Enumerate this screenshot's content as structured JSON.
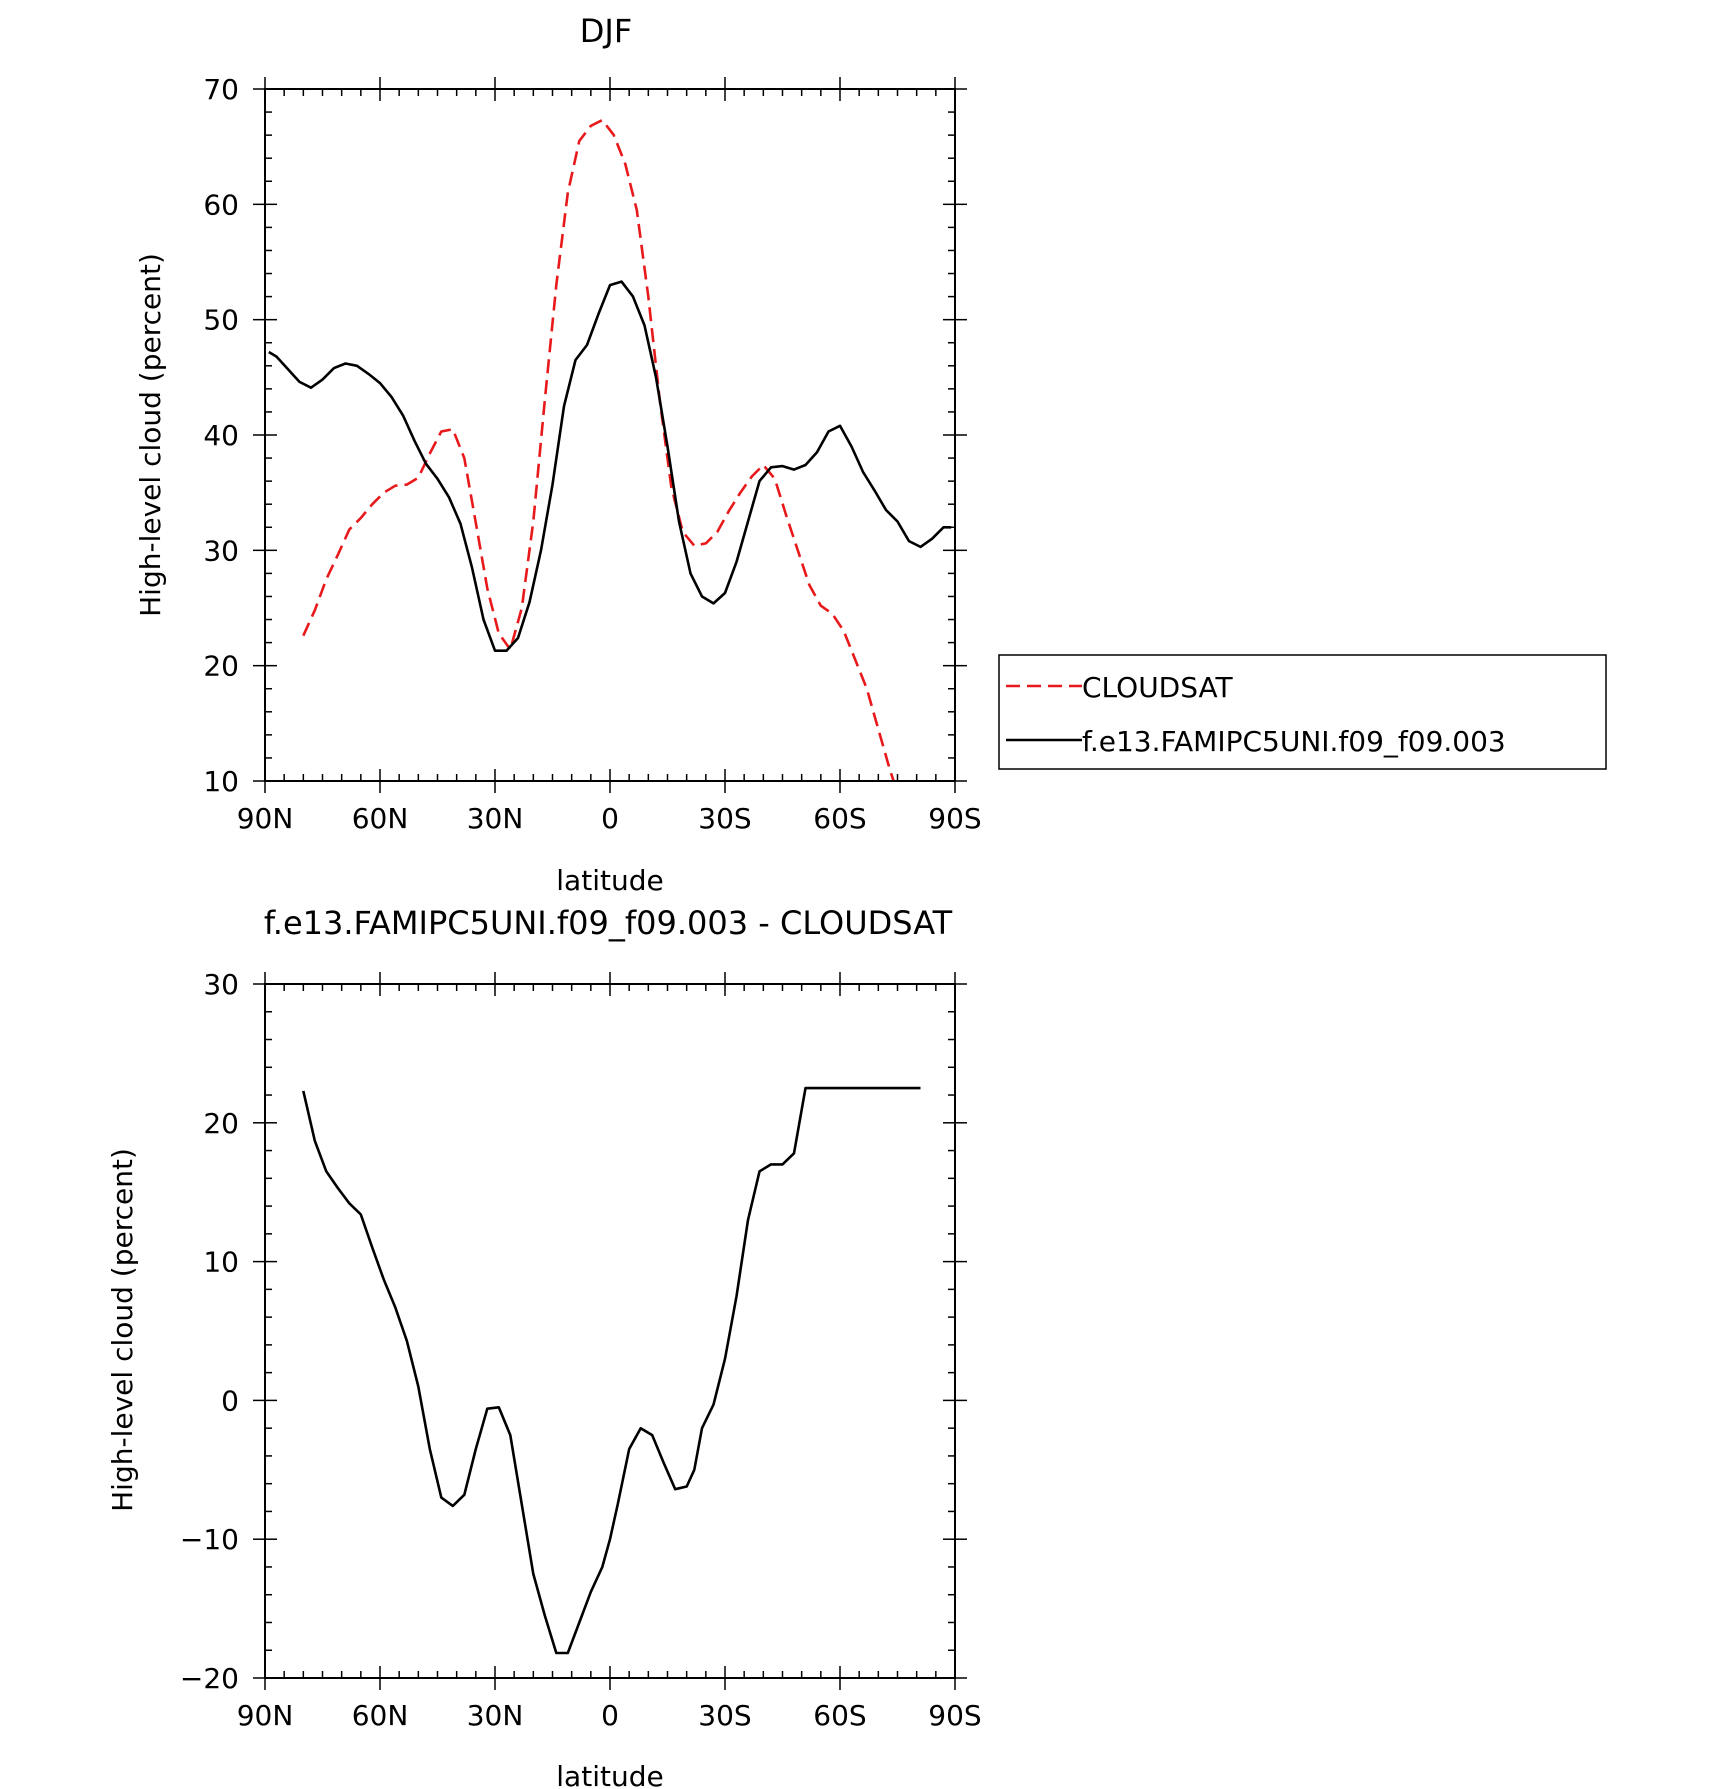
{
  "chart_data": [
    {
      "type": "line",
      "title": "DJF",
      "xlabel": "latitude",
      "ylabel": "High-level cloud (percent)",
      "xlim": [
        90,
        -90
      ],
      "ylim": [
        10,
        70
      ],
      "x_ticks": [
        {
          "value": 90,
          "label": "90N"
        },
        {
          "value": 60,
          "label": "60N"
        },
        {
          "value": 30,
          "label": "30N"
        },
        {
          "value": 0,
          "label": "0"
        },
        {
          "value": -30,
          "label": "30S"
        },
        {
          "value": -60,
          "label": "60S"
        },
        {
          "value": -90,
          "label": "90S"
        }
      ],
      "y_ticks": [
        {
          "value": 70,
          "label": "70"
        },
        {
          "value": 60,
          "label": "60"
        },
        {
          "value": 50,
          "label": "50"
        },
        {
          "value": 40,
          "label": "40"
        },
        {
          "value": 30,
          "label": "30"
        },
        {
          "value": 20,
          "label": "20"
        },
        {
          "value": 10,
          "label": "10"
        }
      ],
      "legend_position": "right",
      "series": [
        {
          "name": "CLOUDSAT",
          "color": "#e8191b",
          "dash": "dashed",
          "x": [
            80,
            77,
            74,
            71,
            68,
            65,
            62,
            59,
            56,
            53,
            50,
            47,
            44,
            41,
            38,
            35,
            32,
            29,
            26,
            23,
            20,
            17,
            14,
            11,
            8,
            5,
            2,
            -1,
            -4,
            -7,
            -10,
            -13,
            -16,
            -19,
            -22,
            -25,
            -28,
            -31,
            -34,
            -37,
            -40,
            -43,
            -46,
            -49,
            -52,
            -55,
            -58,
            -61,
            -64,
            -67,
            -70,
            -73,
            -76,
            -79,
            -81
          ],
          "y": [
            22.6,
            24.8,
            27.5,
            29.6,
            31.8,
            32.8,
            34.0,
            35.0,
            35.6,
            35.7,
            36.3,
            38.4,
            40.3,
            40.5,
            38.0,
            32.4,
            26.7,
            22.8,
            21.4,
            25.0,
            32.5,
            43.0,
            53.0,
            61.0,
            65.5,
            66.8,
            67.3,
            66.0,
            63.5,
            59.5,
            52.0,
            43.0,
            35.5,
            31.6,
            30.4,
            30.6,
            31.6,
            33.4,
            35.0,
            36.4,
            37.4,
            36.2,
            33.0,
            30.0,
            27.0,
            25.2,
            24.5,
            23.0,
            20.5,
            18.0,
            14.5,
            11.0,
            8.0,
            5.0,
            3.5
          ]
        },
        {
          "name": "f.e13.FAMIPC5UNI.f09_f09.003",
          "color": "#000000",
          "dash": "solid",
          "x": [
            89,
            87,
            84,
            81,
            78,
            75,
            72,
            69,
            66,
            63,
            60,
            57,
            54,
            51,
            48,
            45,
            42,
            39,
            36,
            33,
            30,
            27,
            24,
            21,
            18,
            15,
            12,
            9,
            6,
            3,
            0,
            -3,
            -6,
            -9,
            -12,
            -15,
            -18,
            -21,
            -24,
            -27,
            -30,
            -33,
            -36,
            -39,
            -42,
            -45,
            -48,
            -51,
            -54,
            -57,
            -60,
            -63,
            -66,
            -69,
            -72,
            -75,
            -78,
            -81,
            -84,
            -87,
            -89
          ],
          "y": [
            47.2,
            46.8,
            45.7,
            44.6,
            44.1,
            44.8,
            45.8,
            46.2,
            46.0,
            45.3,
            44.5,
            43.3,
            41.7,
            39.5,
            37.5,
            36.2,
            34.6,
            32.3,
            28.5,
            24.0,
            21.3,
            21.3,
            22.4,
            25.5,
            30.0,
            35.7,
            42.5,
            46.5,
            47.8,
            50.5,
            53.0,
            53.3,
            52.0,
            49.5,
            45.0,
            39.0,
            32.5,
            28.0,
            26.0,
            25.4,
            26.3,
            29.0,
            32.5,
            36.0,
            37.2,
            37.3,
            37.0,
            37.4,
            38.5,
            40.3,
            40.8,
            39.0,
            36.8,
            35.2,
            33.5,
            32.5,
            30.8,
            30.3,
            31.0,
            32.0,
            32.0
          ]
        }
      ]
    },
    {
      "type": "line",
      "title": "f.e13.FAMIPC5UNI.f09_f09.003 - CLOUDSAT",
      "xlabel": "latitude",
      "ylabel": "High-level cloud (percent)",
      "xlim": [
        90,
        -90
      ],
      "ylim": [
        -20,
        30
      ],
      "x_ticks": [
        {
          "value": 90,
          "label": "90N"
        },
        {
          "value": 60,
          "label": "60N"
        },
        {
          "value": 30,
          "label": "30N"
        },
        {
          "value": 0,
          "label": "0"
        },
        {
          "value": -30,
          "label": "30S"
        },
        {
          "value": -60,
          "label": "60S"
        },
        {
          "value": -90,
          "label": "90S"
        }
      ],
      "y_ticks": [
        {
          "value": 30,
          "label": "30"
        },
        {
          "value": 20,
          "label": "20"
        },
        {
          "value": 10,
          "label": "10"
        },
        {
          "value": 0,
          "label": "0"
        },
        {
          "value": -10,
          "label": "−10"
        },
        {
          "value": -20,
          "label": "−20"
        }
      ],
      "series": [
        {
          "color": "#000000",
          "dash": "solid",
          "x": [
            80,
            77,
            74,
            71,
            68,
            65,
            62,
            59,
            56,
            53,
            50,
            47,
            44,
            41,
            38,
            35,
            32,
            29,
            26,
            23,
            20,
            17,
            14,
            11,
            8,
            5,
            2,
            0,
            -2,
            -5,
            -8,
            -11,
            -14,
            -17,
            -20,
            -22,
            -24,
            -27,
            -30,
            -33,
            -36,
            -39,
            -42,
            -45,
            -48,
            -51,
            -54,
            -57,
            -60,
            -63,
            -66,
            -69,
            -72,
            -75,
            -78,
            -81
          ],
          "y": [
            22.3,
            18.7,
            16.5,
            15.3,
            14.2,
            13.4,
            11.0,
            8.7,
            6.7,
            4.3,
            1.0,
            -3.5,
            -7.0,
            -7.6,
            -6.8,
            -3.5,
            -0.6,
            -0.5,
            -2.5,
            -7.5,
            -12.5,
            -15.5,
            -18.2,
            -18.2,
            -16.0,
            -13.8,
            -12.0,
            -10.0,
            -7.5,
            -3.5,
            -2.0,
            -2.5,
            -4.5,
            -6.4,
            -6.2,
            -5.0,
            -2.0,
            -0.3,
            3.0,
            7.5,
            13.0,
            16.5,
            17.0,
            17.0,
            17.8,
            22.5,
            22.5,
            22.5,
            22.5,
            22.5,
            22.5,
            22.5,
            22.5,
            22.5,
            22.5,
            22.5
          ]
        }
      ]
    }
  ]
}
